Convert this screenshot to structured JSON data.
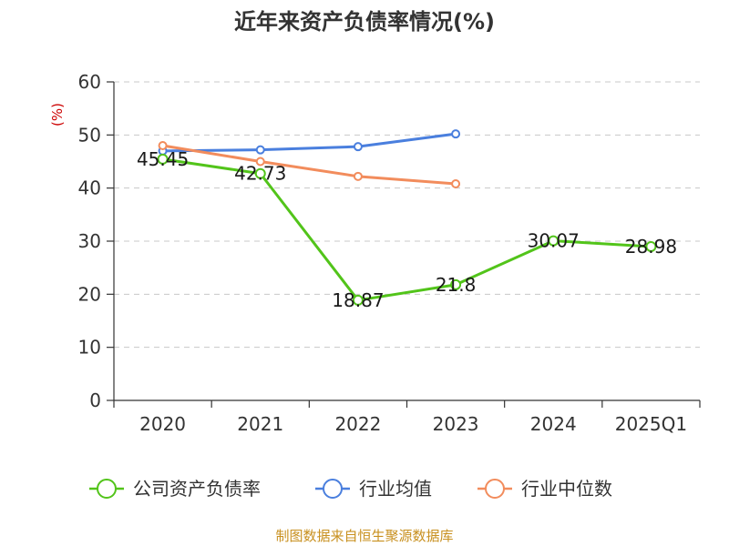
{
  "chart_data": {
    "type": "line",
    "title": "近年来资产负债率情况(%)",
    "ylabel": "(%)",
    "categories": [
      "2020",
      "2021",
      "2022",
      "2023",
      "2024",
      "2025Q1"
    ],
    "ylim": [
      0,
      60
    ],
    "yticks": [
      0,
      10,
      20,
      30,
      40,
      50,
      60
    ],
    "grid": true,
    "legend_position": "bottom",
    "series": [
      {
        "name": "公司资产负债率",
        "color": "#52c41a",
        "values": [
          45.45,
          42.73,
          18.87,
          21.8,
          30.07,
          28.98
        ],
        "labels": [
          "45.45",
          "42.73",
          "18.87",
          "21.8",
          "30.07",
          "28.98"
        ]
      },
      {
        "name": "行业均值",
        "color": "#4a7fde",
        "values": [
          47.0,
          47.2,
          47.8,
          50.2,
          null,
          null
        ]
      },
      {
        "name": "行业中位数",
        "color": "#f28c5c",
        "values": [
          48.0,
          45.0,
          42.2,
          40.8,
          null,
          null
        ]
      }
    ],
    "source": "制图数据来自恒生聚源数据库"
  }
}
